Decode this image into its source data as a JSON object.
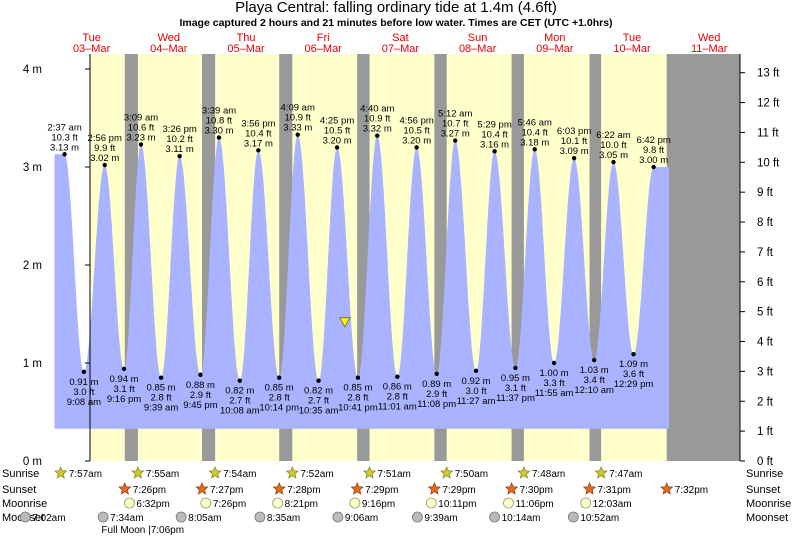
{
  "chart_data": {
    "type": "area",
    "title": "Playa Central: falling  ordinary tide at 1.4m (4.6ft)",
    "subtitle": "Image captured 2 hours and 21 minutes before low water. Times are CET (UTC +1.0hrs)",
    "ylabel_left_unit": "m",
    "ylabel_right_unit": "ft",
    "ylim_m": [
      0,
      4.2
    ],
    "left_ticks": [
      "0 m",
      "1 m",
      "2 m",
      "3 m",
      "4 m"
    ],
    "left_tick_values": [
      0,
      1,
      2,
      3,
      4
    ],
    "right_ticks": [
      "0 ft",
      "1 ft",
      "2 ft",
      "3 ft",
      "4 ft",
      "5 ft",
      "6 ft",
      "7 ft",
      "8 ft",
      "9 ft",
      "10 ft",
      "11 ft",
      "12 ft",
      "13 ft"
    ],
    "right_tick_values_ft": [
      0,
      1,
      2,
      3,
      4,
      5,
      6,
      7,
      8,
      9,
      10,
      11,
      12,
      13
    ],
    "x_range_days": [
      0,
      9
    ],
    "days": [
      {
        "dow": "Tue",
        "date": "03–Mar"
      },
      {
        "dow": "Wed",
        "date": "04–Mar"
      },
      {
        "dow": "Thu",
        "date": "05–Mar"
      },
      {
        "dow": "Fri",
        "date": "06–Mar"
      },
      {
        "dow": "Sat",
        "date": "07–Mar"
      },
      {
        "dow": "Sun",
        "date": "08–Mar"
      },
      {
        "dow": "Mon",
        "date": "09–Mar"
      },
      {
        "dow": "Tue",
        "date": "10–Mar"
      },
      {
        "dow": "Wed",
        "date": "11–Mar"
      }
    ],
    "daylight": [
      {
        "sunrise_day": 0.1,
        "sunset_day": 0.93
      },
      {
        "sunrise_day": 1.1,
        "sunset_day": 1.93
      },
      {
        "sunrise_day": 2.1,
        "sunset_day": 2.93
      },
      {
        "sunrise_day": 3.1,
        "sunset_day": 3.94
      },
      {
        "sunrise_day": 4.1,
        "sunset_day": 4.94
      },
      {
        "sunrise_day": 5.1,
        "sunset_day": 5.94
      },
      {
        "sunrise_day": 6.1,
        "sunset_day": 6.95
      },
      {
        "sunrise_day": 7.1,
        "sunset_day": 7.95
      }
    ],
    "highs": [
      {
        "day": -0.35,
        "m": 3.13,
        "time": "2:37 am",
        "ft": "10.3 ft",
        "mlabel": "3.13 m"
      },
      {
        "day": 0.17,
        "m": 3.02,
        "time": "2:56 pm",
        "ft": "9.9 ft",
        "mlabel": "3.02 m"
      },
      {
        "day": 0.64,
        "m": 3.23,
        "time": "3:09 am",
        "ft": "10.6 ft",
        "mlabel": "3.23 m"
      },
      {
        "day": 1.14,
        "m": 3.11,
        "time": "3:26 pm",
        "ft": "10.2 ft",
        "mlabel": "3.11 m"
      },
      {
        "day": 1.65,
        "m": 3.3,
        "time": "3:39 am",
        "ft": "10.8 ft",
        "mlabel": "3.30 m"
      },
      {
        "day": 2.16,
        "m": 3.17,
        "time": "3:56 pm",
        "ft": "10.4 ft",
        "mlabel": "3.17 m"
      },
      {
        "day": 2.67,
        "m": 3.33,
        "time": "4:09 am",
        "ft": "10.9 ft",
        "mlabel": "3.33 m"
      },
      {
        "day": 3.18,
        "m": 3.2,
        "time": "4:25 pm",
        "ft": "10.5 ft",
        "mlabel": "3.20 m"
      },
      {
        "day": 3.7,
        "m": 3.32,
        "time": "4:40 am",
        "ft": "10.9 ft",
        "mlabel": "3.32 m"
      },
      {
        "day": 4.21,
        "m": 3.2,
        "time": "4:56 pm",
        "ft": "10.5 ft",
        "mlabel": "3.20 m"
      },
      {
        "day": 4.71,
        "m": 3.27,
        "time": "5:12 am",
        "ft": "10.7 ft",
        "mlabel": "3.27 m"
      },
      {
        "day": 5.22,
        "m": 3.16,
        "time": "5:29 pm",
        "ft": "10.4 ft",
        "mlabel": "3.16 m"
      },
      {
        "day": 5.74,
        "m": 3.18,
        "time": "5:46 am",
        "ft": "10.4 ft",
        "mlabel": "3.18 m"
      },
      {
        "day": 6.25,
        "m": 3.09,
        "time": "6:03 pm",
        "ft": "10.1 ft",
        "mlabel": "3.09 m"
      },
      {
        "day": 6.76,
        "m": 3.05,
        "time": "6:22 am",
        "ft": "10.0 ft",
        "mlabel": "3.05 m"
      },
      {
        "day": 7.28,
        "m": 3.0,
        "time": "6:42 pm",
        "ft": "9.8 ft",
        "mlabel": "3.00 m"
      }
    ],
    "lows": [
      {
        "day": -0.1,
        "m": 0.91,
        "time": "9:08 am",
        "ft": "3.0 ft",
        "mlabel": "0.91 m"
      },
      {
        "day": 0.42,
        "m": 0.94,
        "time": "9:16 pm",
        "ft": "3.1 ft",
        "mlabel": "0.94 m"
      },
      {
        "day": 0.9,
        "m": 0.85,
        "time": "9:39 am",
        "ft": "2.8 ft",
        "mlabel": "0.85 m"
      },
      {
        "day": 1.41,
        "m": 0.88,
        "time": "9:45 pm",
        "ft": "2.9 ft",
        "mlabel": "0.88 m"
      },
      {
        "day": 1.92,
        "m": 0.82,
        "time": "10:08 am",
        "ft": "2.7 ft",
        "mlabel": "0.82 m"
      },
      {
        "day": 2.43,
        "m": 0.85,
        "time": "10:14 pm",
        "ft": "2.8 ft",
        "mlabel": "0.85 m"
      },
      {
        "day": 2.94,
        "m": 0.82,
        "time": "10:35 am",
        "ft": "2.7 ft",
        "mlabel": "0.82 m"
      },
      {
        "day": 3.45,
        "m": 0.85,
        "time": "10:41 pm",
        "ft": "2.8 ft",
        "mlabel": "0.85 m"
      },
      {
        "day": 3.96,
        "m": 0.86,
        "time": "11:01 am",
        "ft": "2.8 ft",
        "mlabel": "0.86 m"
      },
      {
        "day": 4.47,
        "m": 0.89,
        "time": "11:08 pm",
        "ft": "2.9 ft",
        "mlabel": "0.89 m"
      },
      {
        "day": 4.98,
        "m": 0.92,
        "time": "11:27 am",
        "ft": "3.0 ft",
        "mlabel": "0.92 m"
      },
      {
        "day": 5.49,
        "m": 0.95,
        "time": "11:37 pm",
        "ft": "3.1 ft",
        "mlabel": "0.95 m"
      },
      {
        "day": 5.99,
        "m": 1.0,
        "time": "11:55 am",
        "ft": "3.3 ft",
        "mlabel": "1.00 m"
      },
      {
        "day": 6.51,
        "m": 1.03,
        "time": "12:10 am",
        "ft": "3.4 ft",
        "mlabel": "1.03 m"
      },
      {
        "day": 7.02,
        "m": 1.09,
        "time": "12:29 pm",
        "ft": "3.6 ft",
        "mlabel": "1.09 m"
      }
    ],
    "current_marker": {
      "day": 3.28,
      "m": 1.4,
      "label": "falling ordinary tide at 1.4m"
    },
    "fill_range_days": [
      -0.48,
      7.48
    ],
    "fill_floor_m": 0.33
  },
  "colors": {
    "night": "#999999",
    "day": "#ffffcc",
    "water": "#aab3ff",
    "day_label": "#e60000",
    "marker": "#ffff00",
    "sun_icon": "#cccc33",
    "sunset_icon": "#ee6622",
    "moonrise_icon": "#ffffcc",
    "moonset_icon": "#bbbbbb"
  },
  "rows": {
    "labels_left": [
      "Sunrise",
      "Sunset",
      "Moonrise",
      "Moonset"
    ],
    "labels_right": [
      "Sunrise",
      "Sunset",
      "Moonrise",
      "Moonset"
    ],
    "sunrise": [
      {
        "day": 0.1,
        "time": "7:57am"
      },
      {
        "day": 1.1,
        "time": "7:55am"
      },
      {
        "day": 2.1,
        "time": "7:54am"
      },
      {
        "day": 3.1,
        "time": "7:52am"
      },
      {
        "day": 4.1,
        "time": "7:51am"
      },
      {
        "day": 5.1,
        "time": "7:50am"
      },
      {
        "day": 6.1,
        "time": "7:48am"
      },
      {
        "day": 7.1,
        "time": "7:47am"
      }
    ],
    "sunset": [
      {
        "day": 0.93,
        "time": "7:26pm"
      },
      {
        "day": 1.93,
        "time": "7:27pm"
      },
      {
        "day": 2.93,
        "time": "7:28pm"
      },
      {
        "day": 3.94,
        "time": "7:29pm"
      },
      {
        "day": 4.94,
        "time": "7:29pm"
      },
      {
        "day": 5.94,
        "time": "7:30pm"
      },
      {
        "day": 6.95,
        "time": "7:31pm"
      },
      {
        "day": 7.95,
        "time": "7:32pm"
      }
    ],
    "moonrise": [
      {
        "day": 0.99,
        "time": "6:32pm"
      },
      {
        "day": 1.98,
        "time": "7:26pm"
      },
      {
        "day": 2.91,
        "time": "8:21pm"
      },
      {
        "day": 3.91,
        "time": "9:16pm"
      },
      {
        "day": 4.9,
        "time": "10:11pm"
      },
      {
        "day": 5.9,
        "time": "11:06pm"
      },
      {
        "day": 6.9,
        "time": "12:03am"
      }
    ],
    "moonset": [
      {
        "day": -0.36,
        "time": "7:02am"
      },
      {
        "day": 0.65,
        "time": "7:34am"
      },
      {
        "day": 1.66,
        "time": "8:05am"
      },
      {
        "day": 2.68,
        "time": "8:35am"
      },
      {
        "day": 3.69,
        "time": "9:06am"
      },
      {
        "day": 4.72,
        "time": "9:39am"
      },
      {
        "day": 5.72,
        "time": "10:14am"
      },
      {
        "day": 6.74,
        "time": "10:52am"
      }
    ],
    "full_moon": {
      "day": 0.99,
      "label": "Full Moon |7:06pm"
    }
  }
}
